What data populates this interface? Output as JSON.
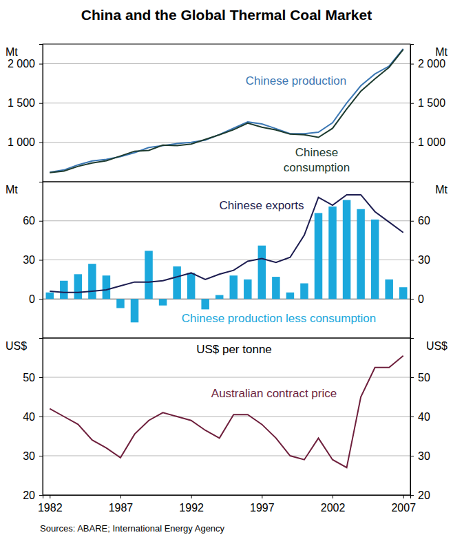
{
  "title": "China and the Global Thermal Coal Market",
  "source": "Sources: ABARE; International Energy Agency",
  "chart_data": [
    {
      "type": "line",
      "ylabel": "Mt",
      "x": [
        1982,
        1983,
        1984,
        1985,
        1986,
        1987,
        1988,
        1989,
        1990,
        1991,
        1992,
        1993,
        1994,
        1995,
        1996,
        1997,
        1998,
        1999,
        2000,
        2001,
        2002,
        2003,
        2004,
        2005,
        2006,
        2007
      ],
      "series": [
        {
          "name": "Chinese production",
          "color": "#3c78b4",
          "values": [
            620,
            650,
            715,
            765,
            785,
            820,
            870,
            935,
            960,
            985,
            1000,
            1030,
            1100,
            1180,
            1260,
            1235,
            1175,
            1110,
            1110,
            1130,
            1250,
            1500,
            1720,
            1870,
            1970,
            2190
          ]
        },
        {
          "name": "Chinese consumption",
          "color": "#1d3b2f",
          "values": [
            615,
            636,
            696,
            738,
            767,
            827,
            888,
            898,
            965,
            960,
            980,
            1038,
            1097,
            1162,
            1245,
            1194,
            1158,
            1105,
            1098,
            1064,
            1179,
            1424,
            1651,
            1809,
            1955,
            2181
          ]
        }
      ],
      "xlim": [
        1981.5,
        2007.5
      ],
      "ylim": [
        500,
        2250
      ],
      "yticks": [
        {
          "value": 1000,
          "label": "1 000"
        },
        {
          "value": 1500,
          "label": "1 500"
        },
        {
          "value": 2000,
          "label": "2 000"
        }
      ],
      "grid": true,
      "tick_labels": "y"
    },
    {
      "type": "bar",
      "ylabel": "Mt",
      "x": [
        1982,
        1983,
        1984,
        1985,
        1986,
        1987,
        1988,
        1989,
        1990,
        1991,
        1992,
        1993,
        1994,
        1995,
        1996,
        1997,
        1998,
        1999,
        2000,
        2001,
        2002,
        2003,
        2004,
        2005,
        2006,
        2007
      ],
      "series": [
        {
          "name": "Chinese exports",
          "type": "line",
          "color": "#1c1c50",
          "values": [
            6,
            5,
            5,
            6,
            7,
            10,
            13,
            13,
            14,
            17,
            20,
            15,
            19,
            22,
            29,
            31,
            28,
            32,
            49,
            78,
            72,
            80,
            80,
            67,
            59,
            51
          ]
        },
        {
          "name": "Chinese production less consumption",
          "type": "bar",
          "color": "#1ba8dc",
          "values": [
            5,
            14,
            19,
            27,
            18,
            -7,
            -18,
            37,
            -5,
            25,
            20,
            -8,
            3,
            18,
            15,
            41,
            17,
            5,
            12,
            66,
            71,
            76,
            69,
            61,
            15,
            9
          ]
        }
      ],
      "xlim": [
        1981.5,
        2007.5
      ],
      "ylim": [
        -30,
        90
      ],
      "yticks": [
        0,
        30,
        60
      ],
      "grid": true,
      "tick_labels": "y"
    },
    {
      "type": "line",
      "ylabel": "US$",
      "subtitle": "US$ per tonne",
      "x": [
        1982,
        1983,
        1984,
        1985,
        1986,
        1987,
        1988,
        1989,
        1990,
        1991,
        1992,
        1993,
        1994,
        1995,
        1996,
        1997,
        1998,
        1999,
        2000,
        2001,
        2002,
        2003,
        2004,
        2005,
        2006,
        2007
      ],
      "series": [
        {
          "name": "Australian contract price",
          "color": "#6e1f3c",
          "values": [
            42,
            40,
            38,
            34,
            32,
            29.5,
            35.5,
            39,
            41,
            40,
            39,
            36.5,
            34.5,
            40.5,
            40.5,
            38,
            34.5,
            30,
            29,
            34.5,
            29,
            27,
            45,
            52.5,
            52.5,
            55.5
          ]
        }
      ],
      "xlim": [
        1981.5,
        2007.5
      ],
      "xticks": [
        1982,
        1987,
        1992,
        1997,
        2002,
        2007
      ],
      "ylim": [
        20,
        60
      ],
      "yticks": [
        20,
        30,
        40,
        50
      ],
      "grid": true,
      "tick_labels": true
    }
  ]
}
